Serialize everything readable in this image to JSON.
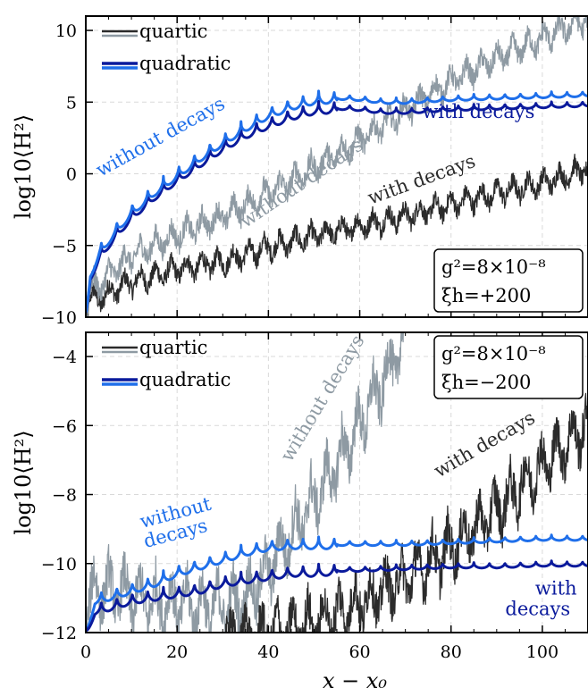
{
  "chart_data": [
    {
      "type": "line",
      "xlabel": "",
      "ylabel": "log10⟨H²⟩",
      "xlim": [
        0,
        110
      ],
      "ylim": [
        -10,
        11
      ],
      "xticks": [
        0,
        20,
        40,
        60,
        80,
        100
      ],
      "yticks": [
        -10,
        -5,
        0,
        5,
        10
      ],
      "grid": true,
      "legend_placement": "top-left",
      "legend": [
        {
          "label": "quartic",
          "colors": [
            "#2b2b2b",
            "#8e9aa3"
          ]
        },
        {
          "label": "quadratic",
          "colors": [
            "#0a1a9c",
            "#1f6fea"
          ]
        }
      ],
      "info_box": [
        "g²=8×10⁻⁸",
        "ξh=+200"
      ],
      "series": [
        {
          "key": "quartic_with",
          "color": "#2b2b2b",
          "osc_amp": 1.4,
          "x": [
            0,
            1,
            3,
            6,
            10,
            15,
            20,
            30,
            40,
            50,
            60,
            70,
            80,
            90,
            100,
            110
          ],
          "y": [
            -10,
            -8.5,
            -8.6,
            -8.0,
            -7.4,
            -7.0,
            -6.5,
            -6.0,
            -5.0,
            -4.2,
            -3.5,
            -2.8,
            -2.0,
            -1.2,
            -0.5,
            0.5
          ]
        },
        {
          "key": "quartic_without",
          "color": "#8e9aa3",
          "osc_amp": 1.6,
          "x": [
            0,
            1,
            3,
            6,
            10,
            15,
            20,
            30,
            40,
            50,
            60,
            70,
            80,
            90,
            100,
            110
          ],
          "y": [
            -10,
            -7.8,
            -7.6,
            -6.6,
            -5.6,
            -4.8,
            -4.1,
            -2.8,
            -1.2,
            0.6,
            2.5,
            4.6,
            6.6,
            8.2,
            9.6,
            11
          ]
        },
        {
          "key": "quadratic_with",
          "color": "#0a1a9c",
          "osc_amp": 0.9,
          "x": [
            0,
            1,
            3,
            6,
            10,
            15,
            20,
            25,
            30,
            35,
            40,
            45,
            50,
            55,
            60,
            65,
            70,
            75,
            80,
            90,
            100,
            110
          ],
          "y": [
            -10,
            -7.0,
            -5.6,
            -4.3,
            -2.8,
            -1.4,
            -0.2,
            0.9,
            2.0,
            2.9,
            3.6,
            4.2,
            4.6,
            4.7,
            4.6,
            4.4,
            4.4,
            4.5,
            4.6,
            4.7,
            4.8,
            4.9
          ]
        },
        {
          "key": "quadratic_without",
          "color": "#1f6fea",
          "osc_amp": 0.9,
          "x": [
            0,
            1,
            3,
            6,
            10,
            15,
            20,
            25,
            30,
            35,
            40,
            45,
            50,
            55,
            60,
            65,
            70,
            75,
            80,
            90,
            100,
            110
          ],
          "y": [
            -10,
            -6.8,
            -5.3,
            -4.0,
            -2.5,
            -1.1,
            0.1,
            1.3,
            2.4,
            3.4,
            4.3,
            4.9,
            5.3,
            5.4,
            5.3,
            5.1,
            5.1,
            5.2,
            5.3,
            5.4,
            5.5,
            5.6
          ]
        }
      ],
      "annotations": [
        {
          "text": "without decays",
          "x": 17,
          "y": 2.2,
          "rot": -29,
          "color": "#1f6fea"
        },
        {
          "text": "with decays",
          "x": 86,
          "y": 3.9,
          "rot": 0,
          "color": "#0a1a9c"
        },
        {
          "text": "without decays",
          "x": 48,
          "y": -1.0,
          "rot": -34,
          "color": "#8e9aa3"
        },
        {
          "text": "with decays",
          "x": 74,
          "y": -0.8,
          "rot": -20,
          "color": "#2b2b2b"
        }
      ]
    },
    {
      "type": "line",
      "xlabel": "x − x₀",
      "ylabel": "log10⟨H²⟩",
      "xlim": [
        0,
        110
      ],
      "ylim": [
        -12,
        -3.3
      ],
      "xticks": [
        0,
        20,
        40,
        60,
        80,
        100
      ],
      "yticks": [
        -12,
        -10,
        -8,
        -6,
        -4
      ],
      "grid": true,
      "legend_placement": "top-left",
      "legend": [
        {
          "label": "quartic",
          "colors": [
            "#2b2b2b",
            "#8e9aa3"
          ]
        },
        {
          "label": "quadratic",
          "colors": [
            "#0a1a9c",
            "#1f6fea"
          ]
        }
      ],
      "info_box": [
        "g²=8×10⁻⁸",
        "ξh=−200"
      ],
      "series": [
        {
          "key": "quartic_without",
          "color": "#8e9aa3",
          "osc_amp": 1.5,
          "x": [
            0,
            2,
            5,
            10,
            15,
            20,
            25,
            30,
            35,
            40,
            45,
            50,
            55,
            60,
            65,
            70
          ],
          "y": [
            -11.2,
            -10.6,
            -10.6,
            -10.8,
            -11.0,
            -11.0,
            -11.1,
            -11.1,
            -10.9,
            -10.0,
            -9.0,
            -8.0,
            -7.0,
            -5.8,
            -4.6,
            -3.3
          ]
        },
        {
          "key": "quartic_with",
          "color": "#2b2b2b",
          "osc_amp": 1.4,
          "x": [
            30,
            40,
            50,
            60,
            70,
            80,
            90,
            100,
            110
          ],
          "y": [
            -12.0,
            -11.9,
            -11.6,
            -11.0,
            -10.3,
            -9.4,
            -8.3,
            -7.0,
            -5.8
          ]
        },
        {
          "key": "quadratic_without",
          "color": "#1f6fea",
          "osc_amp": 0.35,
          "x": [
            0,
            2,
            5,
            10,
            15,
            20,
            25,
            30,
            35,
            40,
            45,
            50,
            55,
            60,
            70,
            80,
            90,
            100,
            110
          ],
          "y": [
            -12,
            -11.0,
            -10.9,
            -10.7,
            -10.5,
            -10.2,
            -10.0,
            -9.8,
            -9.6,
            -9.45,
            -9.4,
            -9.4,
            -9.4,
            -9.4,
            -9.4,
            -9.35,
            -9.3,
            -9.25,
            -9.25
          ]
        },
        {
          "key": "quadratic_with",
          "color": "#0a1a9c",
          "osc_amp": 0.35,
          "x": [
            0,
            2,
            5,
            10,
            15,
            20,
            25,
            30,
            35,
            40,
            45,
            50,
            55,
            60,
            70,
            80,
            90,
            100,
            110
          ],
          "y": [
            -12,
            -11.3,
            -11.2,
            -11.0,
            -10.9,
            -10.8,
            -10.7,
            -10.5,
            -10.4,
            -10.3,
            -10.2,
            -10.2,
            -10.15,
            -10.15,
            -10.1,
            -10.05,
            -10.05,
            -10.0,
            -10.0
          ]
        }
      ],
      "annotations": [
        {
          "text": "without decays",
          "x": 53,
          "y": -5.3,
          "rot": -59,
          "color": "#8e9aa3"
        },
        {
          "text": "with decays",
          "x": 88,
          "y": -6.7,
          "rot": -30,
          "color": "#2b2b2b"
        },
        {
          "text": "without",
          "x": 20,
          "y": -8.7,
          "rot": -15,
          "color": "#1f6fea"
        },
        {
          "text": "decays",
          "x": 20,
          "y": -9.3,
          "rot": -15,
          "color": "#1f6fea"
        },
        {
          "text": "with",
          "x": 103,
          "y": -10.9,
          "rot": 0,
          "color": "#0a1a9c"
        },
        {
          "text": "decays",
          "x": 99,
          "y": -11.5,
          "rot": 0,
          "color": "#0a1a9c"
        }
      ]
    }
  ]
}
